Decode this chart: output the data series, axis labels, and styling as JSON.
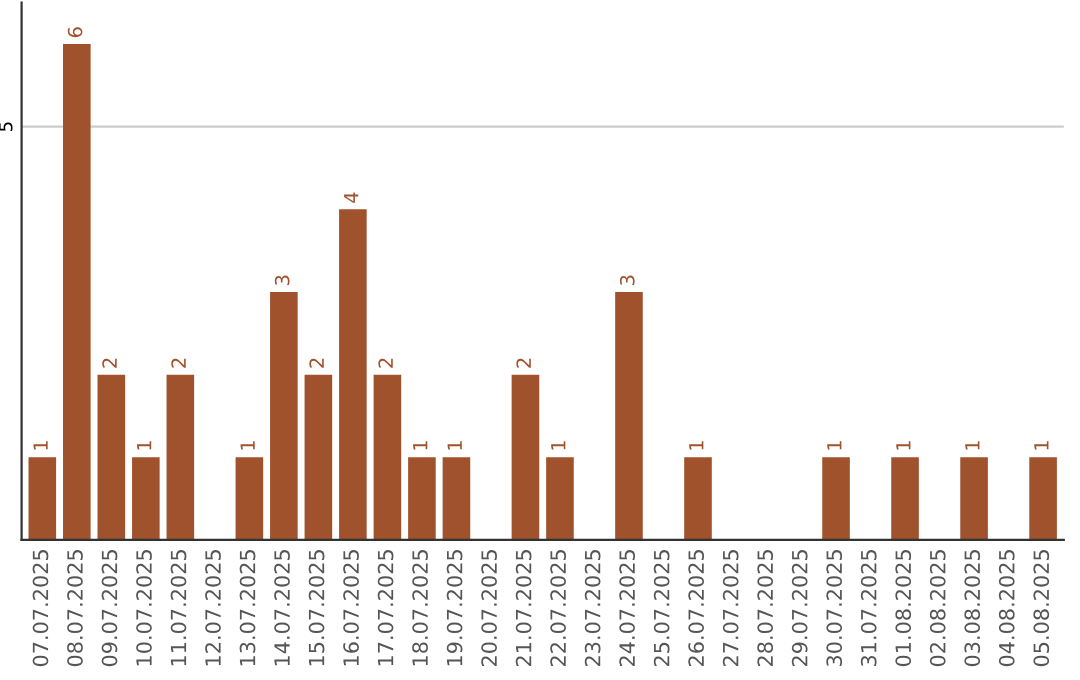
{
  "chart_data": {
    "type": "bar",
    "categories": [
      "07.07.2025",
      "08.07.2025",
      "09.07.2025",
      "10.07.2025",
      "11.07.2025",
      "12.07.2025",
      "13.07.2025",
      "14.07.2025",
      "15.07.2025",
      "16.07.2025",
      "17.07.2025",
      "18.07.2025",
      "19.07.2025",
      "20.07.2025",
      "21.07.2025",
      "22.07.2025",
      "23.07.2025",
      "24.07.2025",
      "25.07.2025",
      "26.07.2025",
      "27.07.2025",
      "28.07.2025",
      "29.07.2025",
      "30.07.2025",
      "31.07.2025",
      "01.08.2025",
      "02.08.2025",
      "03.08.2025",
      "04.08.2025",
      "05.08.2025"
    ],
    "values": [
      1,
      6,
      2,
      1,
      2,
      0,
      1,
      3,
      2,
      4,
      2,
      1,
      1,
      0,
      2,
      1,
      0,
      3,
      0,
      1,
      0,
      0,
      0,
      1,
      0,
      1,
      0,
      1,
      0,
      1
    ],
    "value_labels": [
      "1",
      "6",
      "2",
      "1",
      "2",
      null,
      "1",
      "3",
      "2",
      "4",
      "2",
      "1",
      "1",
      null,
      "2",
      "1",
      null,
      "3",
      null,
      "1",
      null,
      null,
      null,
      "1",
      null,
      "1",
      null,
      "1",
      null,
      "1"
    ],
    "color": "#a0522d",
    "ylim": [
      0,
      6.5
    ],
    "yticks": [
      5
    ],
    "grid": "y"
  }
}
